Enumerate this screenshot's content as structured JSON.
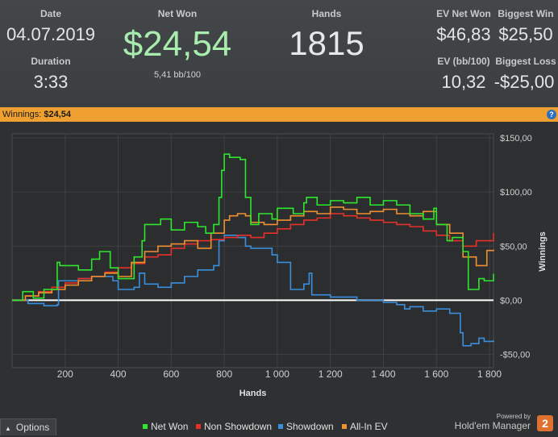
{
  "stats": {
    "date_label": "Date",
    "date_value": "04.07.2019",
    "duration_label": "Duration",
    "duration_value": "3:33",
    "net_won_label": "Net Won",
    "net_won_value": "$24,54",
    "bb_per_100": "5,41 bb/100",
    "hands_label": "Hands",
    "hands_value": "1815",
    "ev_net_won_label": "EV Net Won",
    "ev_net_won_value": "$46,83",
    "biggest_win_label": "Biggest Win",
    "biggest_win_value": "$25,50",
    "ev_bb100_label": "EV (bb/100)",
    "ev_bb100_value": "10,32",
    "biggest_loss_label": "Biggest Loss",
    "biggest_loss_value": "-$25,00"
  },
  "winnings_bar": {
    "label": "Winnings:",
    "value": "$24,54",
    "help": "?"
  },
  "footer": {
    "options_label": "Options",
    "options_arrow": "▲",
    "powered_by": "Powered by",
    "brand": "Hold'em Manager",
    "brand_version": "2"
  },
  "colors": {
    "net_won": "#2ee62e",
    "non_showdown": "#e8302a",
    "showdown": "#3a8fdc",
    "all_in_ev": "#f09030",
    "net_won_text": "#9fe79f"
  },
  "chart_data": {
    "type": "line",
    "xlabel": "Hands",
    "ylabel": "Winnings",
    "xlim": [
      0,
      1815
    ],
    "ylim": [
      -60,
      150
    ],
    "x_ticks": [
      200,
      400,
      600,
      800,
      1000,
      1200,
      1400,
      1600,
      1800
    ],
    "x_tick_labels": [
      "200",
      "400",
      "600",
      "800",
      "1 000",
      "1 200",
      "1 400",
      "1 600",
      "1 800"
    ],
    "y_ticks": [
      150,
      100,
      50,
      0,
      -50
    ],
    "y_tick_labels": [
      "$150,00",
      "$100,00",
      "$50,00",
      "$0,00",
      "-$50,00"
    ],
    "grid": true,
    "legend_position": "bottom",
    "series": [
      {
        "name": "Net Won",
        "color": "#2ee62e",
        "x": [
          0,
          40,
          80,
          120,
          170,
          180,
          250,
          300,
          330,
          370,
          400,
          460,
          490,
          500,
          560,
          600,
          650,
          700,
          730,
          760,
          780,
          790,
          800,
          820,
          860,
          880,
          900,
          930,
          980,
          1000,
          1060,
          1100,
          1110,
          1150,
          1200,
          1250,
          1300,
          1350,
          1400,
          1450,
          1500,
          1550,
          1590,
          1600,
          1640,
          1660,
          1700,
          1720,
          1760,
          1780,
          1815
        ],
        "y": [
          0,
          8,
          2,
          10,
          35,
          32,
          28,
          38,
          45,
          30,
          20,
          40,
          55,
          70,
          75,
          65,
          72,
          68,
          62,
          70,
          95,
          120,
          135,
          132,
          130,
          95,
          70,
          80,
          75,
          85,
          80,
          90,
          95,
          88,
          92,
          90,
          95,
          88,
          92,
          88,
          80,
          75,
          85,
          70,
          55,
          58,
          45,
          10,
          20,
          18,
          24.5
        ]
      },
      {
        "name": "Non Showdown",
        "color": "#e8302a",
        "x": [
          0,
          50,
          100,
          150,
          200,
          250,
          300,
          350,
          400,
          450,
          500,
          550,
          600,
          650,
          700,
          750,
          800,
          850,
          900,
          950,
          1000,
          1050,
          1100,
          1150,
          1200,
          1250,
          1300,
          1350,
          1400,
          1450,
          1500,
          1550,
          1600,
          1650,
          1700,
          1750,
          1815
        ],
        "y": [
          0,
          4,
          8,
          12,
          16,
          20,
          22,
          26,
          30,
          34,
          40,
          42,
          48,
          52,
          55,
          56,
          58,
          60,
          58,
          62,
          66,
          70,
          74,
          76,
          80,
          78,
          76,
          74,
          72,
          70,
          68,
          64,
          60,
          55,
          50,
          55,
          62
        ]
      },
      {
        "name": "Showdown",
        "color": "#3a8fdc",
        "x": [
          0,
          60,
          120,
          170,
          175,
          250,
          300,
          380,
          400,
          460,
          480,
          500,
          550,
          600,
          650,
          700,
          760,
          780,
          800,
          850,
          880,
          900,
          980,
          1000,
          1050,
          1100,
          1120,
          1130,
          1200,
          1300,
          1400,
          1450,
          1480,
          1500,
          1550,
          1600,
          1650,
          1690,
          1700,
          1730,
          1760,
          1780,
          1815
        ],
        "y": [
          0,
          -3,
          -5,
          -4,
          18,
          20,
          22,
          18,
          10,
          12,
          25,
          15,
          12,
          16,
          22,
          28,
          32,
          55,
          60,
          58,
          50,
          48,
          42,
          35,
          10,
          15,
          25,
          5,
          3,
          0,
          -2,
          -4,
          -8,
          -6,
          -10,
          -8,
          -12,
          -30,
          -42,
          -40,
          -35,
          -38,
          -37
        ]
      },
      {
        "name": "All-In EV",
        "color": "#f09030",
        "x": [
          0,
          50,
          100,
          150,
          200,
          250,
          300,
          350,
          400,
          450,
          500,
          550,
          600,
          650,
          700,
          750,
          800,
          820,
          850,
          880,
          900,
          950,
          1000,
          1050,
          1100,
          1150,
          1200,
          1250,
          1300,
          1350,
          1400,
          1450,
          1500,
          1550,
          1600,
          1650,
          1700,
          1750,
          1790,
          1815
        ],
        "y": [
          0,
          4,
          7,
          10,
          14,
          18,
          22,
          25,
          22,
          35,
          45,
          50,
          52,
          55,
          48,
          62,
          74,
          78,
          80,
          78,
          72,
          70,
          74,
          78,
          82,
          80,
          86,
          84,
          80,
          82,
          84,
          80,
          78,
          82,
          70,
          62,
          40,
          32,
          46,
          46.8
        ]
      }
    ]
  }
}
